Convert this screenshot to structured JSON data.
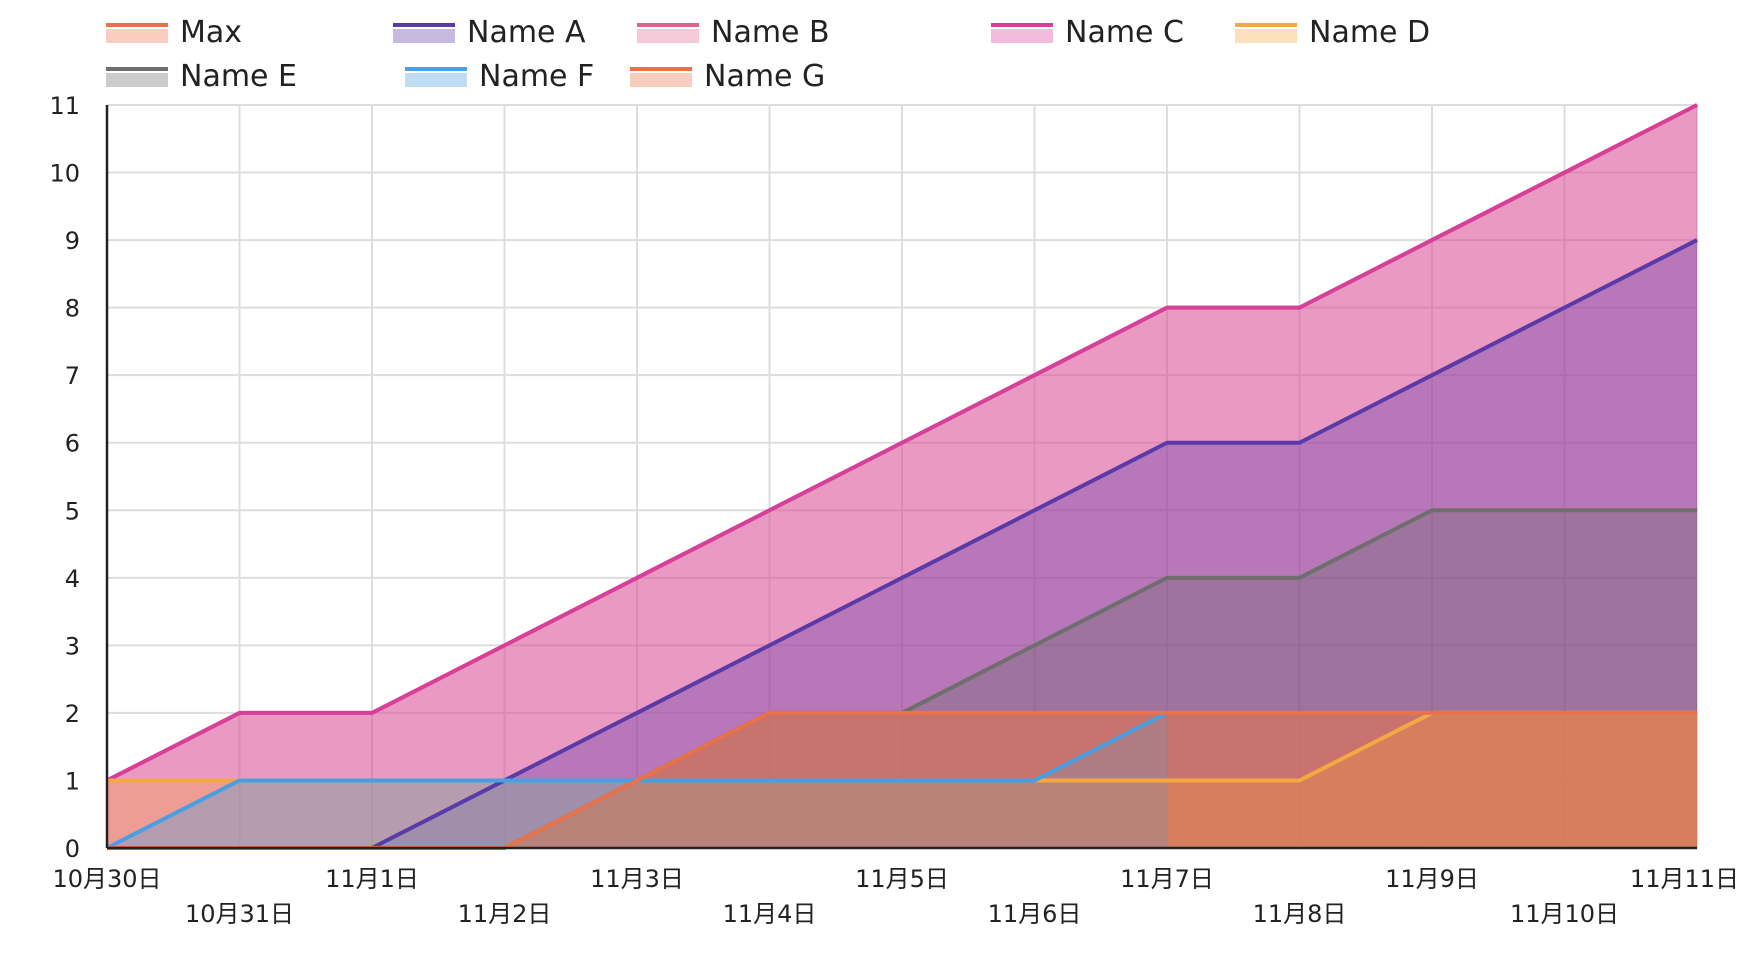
{
  "chart_data": {
    "type": "area",
    "title": "",
    "xlabel": "",
    "ylabel": "",
    "categories": [
      "10月30日",
      "10月31日",
      "11月1日",
      "11月2日",
      "11月3日",
      "11月4日",
      "11月5日",
      "11月6日",
      "11月7日",
      "11月8日",
      "11月9日",
      "11月10日",
      "11月11日"
    ],
    "ylim": [
      0,
      11
    ],
    "y_ticks": [
      "0",
      "1",
      "2",
      "3",
      "4",
      "5",
      "6",
      "7",
      "8",
      "9",
      "10",
      "11"
    ],
    "grid": true,
    "legend_position": "top",
    "series": [
      {
        "name": "Max",
        "color": "#E8724A",
        "values": [
          0,
          0,
          0,
          0,
          1,
          2,
          2,
          2,
          2,
          2,
          2,
          2,
          2
        ]
      },
      {
        "name": "Name A",
        "color": "#5B3AA8",
        "values": [
          0,
          0,
          0,
          1,
          2,
          3,
          4,
          5,
          6,
          6,
          7,
          8,
          9
        ]
      },
      {
        "name": "Name B",
        "color": "#E0638E",
        "values": [
          1,
          2,
          2,
          3,
          4,
          5,
          6,
          7,
          8,
          8,
          9,
          10,
          11
        ]
      },
      {
        "name": "Name C",
        "color": "#D6409A",
        "values": [
          1,
          2,
          2,
          3,
          4,
          5,
          6,
          7,
          8,
          8,
          9,
          10,
          11
        ]
      },
      {
        "name": "Name D",
        "color": "#F5A742",
        "values": [
          1,
          1,
          1,
          1,
          1,
          1,
          1,
          1,
          1,
          1,
          2,
          2,
          2
        ]
      },
      {
        "name": "Name E",
        "color": "#6E6E6E",
        "values": [
          0,
          0,
          0,
          0,
          1,
          2,
          2,
          3,
          4,
          4,
          5,
          5,
          5
        ]
      },
      {
        "name": "Name F",
        "color": "#4A9FE0",
        "values": [
          0,
          1,
          1,
          1,
          1,
          1,
          1,
          1,
          2,
          null,
          null,
          null,
          null
        ]
      },
      {
        "name": "Name G",
        "color": "#E8724A",
        "values": [
          0,
          0,
          0,
          0,
          1,
          2,
          2,
          2,
          2,
          2,
          2,
          2,
          2
        ]
      }
    ]
  }
}
